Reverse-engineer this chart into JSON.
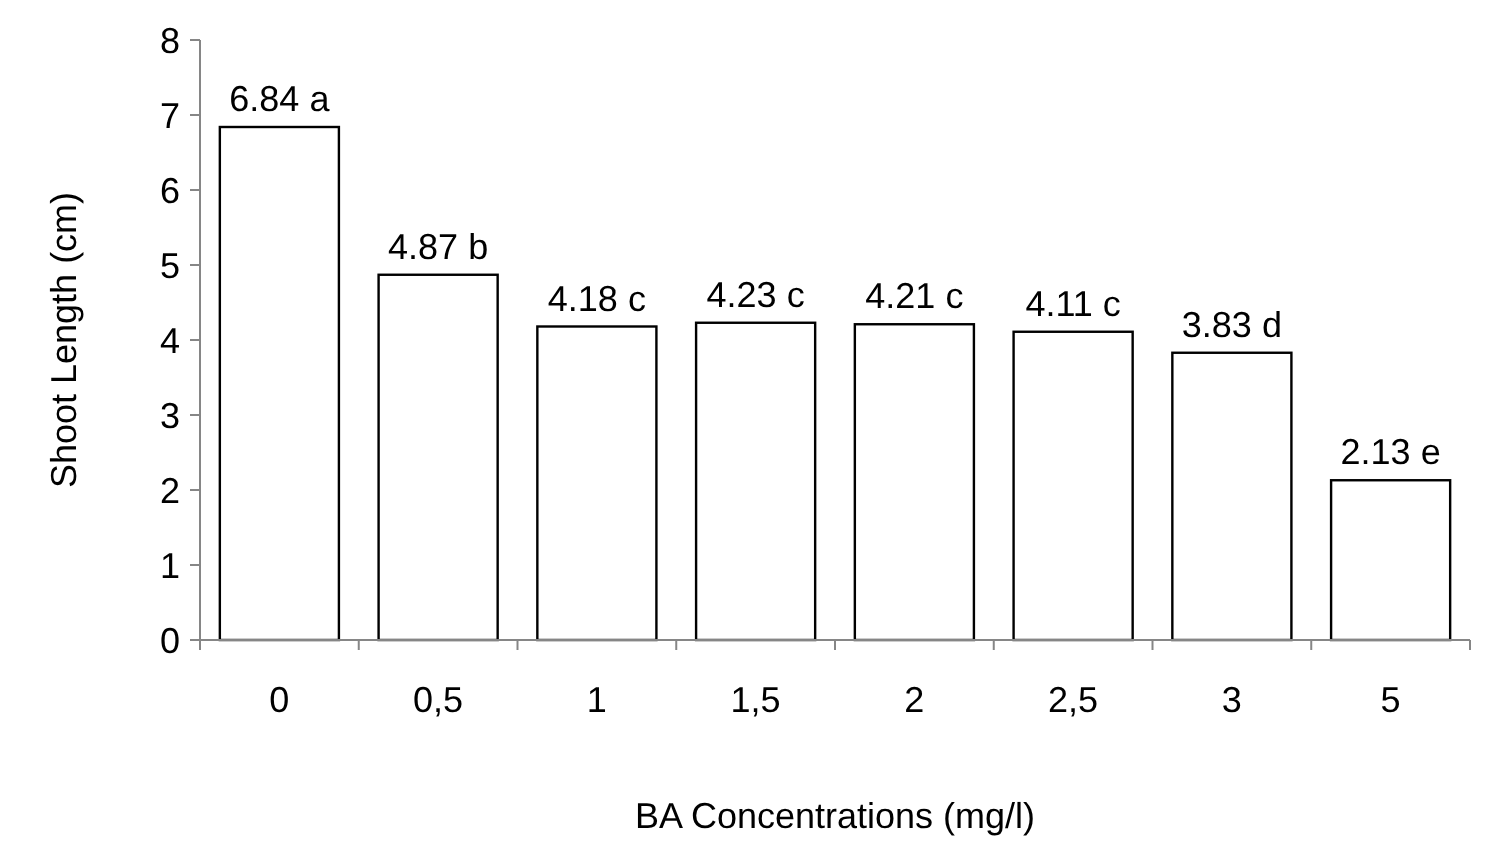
{
  "chart_data": {
    "type": "bar",
    "xlabel": "BA Concentrations (mg/l)",
    "ylabel": "Shoot Length (cm)",
    "categories": [
      "0",
      "0,5",
      "1",
      "1,5",
      "2",
      "2,5",
      "3",
      "5"
    ],
    "values": [
      6.84,
      4.87,
      4.18,
      4.23,
      4.21,
      4.11,
      3.83,
      2.13
    ],
    "value_labels": [
      "6.84 a",
      "4.87 b",
      "4.18 c",
      "4.23 c",
      "4.21 c",
      "4.11 c",
      "3.83 d",
      "2.13 e"
    ],
    "color": "#ffffff",
    "ylim": [
      0,
      8
    ],
    "yticks": [
      0,
      1,
      2,
      3,
      4,
      5,
      6,
      7,
      8
    ],
    "grid": false
  }
}
